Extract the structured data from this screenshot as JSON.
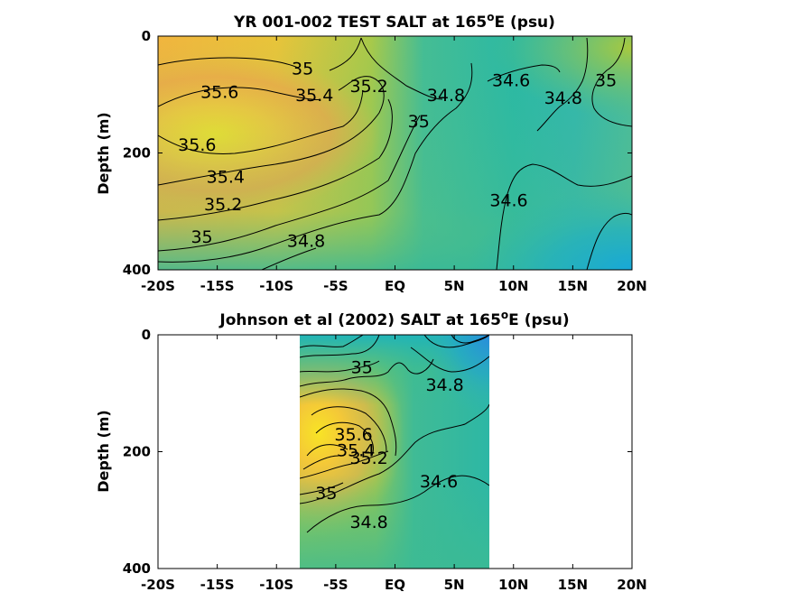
{
  "chart_data": [
    {
      "type": "contour",
      "title": "YR 001-002 TEST SALT at 165",
      "title_sup": "o",
      "title_tail": "E (psu)",
      "ylabel": "Depth (m)",
      "xlabel": "",
      "x_ticks": [
        "-20S",
        "-15S",
        "-10S",
        "-5S",
        "EQ",
        "5N",
        "10N",
        "15N",
        "20N"
      ],
      "x_tick_values": [
        -20,
        -15,
        -10,
        -5,
        0,
        5,
        10,
        15,
        20
      ],
      "y_ticks": [
        "0",
        "200",
        "400"
      ],
      "y_tick_values": [
        0,
        200,
        400
      ],
      "xlim": [
        -20,
        20
      ],
      "ylim": [
        0,
        400
      ],
      "data_extent_x": [
        -20,
        20
      ],
      "contour_levels": [
        34.6,
        34.8,
        35,
        35.2,
        35.4,
        35.6
      ],
      "contour_labels": [
        {
          "text": "35",
          "x": -7.8,
          "y": 55
        },
        {
          "text": "35.6",
          "x": -14.8,
          "y": 95
        },
        {
          "text": "35.4",
          "x": -6.8,
          "y": 100
        },
        {
          "text": "35.2",
          "x": -2.2,
          "y": 85
        },
        {
          "text": "34.8",
          "x": 4.3,
          "y": 100
        },
        {
          "text": "34.6",
          "x": 9.8,
          "y": 75
        },
        {
          "text": "34.8",
          "x": 14.2,
          "y": 105
        },
        {
          "text": "35",
          "x": 17.8,
          "y": 75
        },
        {
          "text": "35",
          "x": 2.0,
          "y": 145
        },
        {
          "text": "35.6",
          "x": -16.7,
          "y": 185
        },
        {
          "text": "35.4",
          "x": -14.3,
          "y": 240
        },
        {
          "text": "35.2",
          "x": -14.5,
          "y": 287
        },
        {
          "text": "35",
          "x": -16.3,
          "y": 343
        },
        {
          "text": "34.8",
          "x": -7.5,
          "y": 350
        },
        {
          "text": "34.6",
          "x": 9.6,
          "y": 280
        }
      ]
    },
    {
      "type": "contour",
      "title": "Johnson et al (2002) SALT at 165",
      "title_sup": "o",
      "title_tail": "E (psu)",
      "ylabel": "Depth (m)",
      "xlabel": "",
      "x_ticks": [
        "-20S",
        "-15S",
        "-10S",
        "-5S",
        "EQ",
        "5N",
        "10N",
        "15N",
        "20N"
      ],
      "x_tick_values": [
        -20,
        -15,
        -10,
        -5,
        0,
        5,
        10,
        15,
        20
      ],
      "y_ticks": [
        "0",
        "200",
        "400"
      ],
      "y_tick_values": [
        0,
        200,
        400
      ],
      "xlim": [
        -20,
        20
      ],
      "ylim": [
        0,
        400
      ],
      "data_extent_x": [
        -8,
        8
      ],
      "contour_levels": [
        34.6,
        34.8,
        35,
        35.2,
        35.4,
        35.6
      ],
      "contour_labels": [
        {
          "text": "35",
          "x": -2.8,
          "y": 55
        },
        {
          "text": "34.8",
          "x": 4.2,
          "y": 85
        },
        {
          "text": "35.6",
          "x": -3.5,
          "y": 170
        },
        {
          "text": "35.4",
          "x": -3.3,
          "y": 197
        },
        {
          "text": "35.2",
          "x": -2.2,
          "y": 210
        },
        {
          "text": "35",
          "x": -5.8,
          "y": 270
        },
        {
          "text": "34.6",
          "x": 3.7,
          "y": 250
        },
        {
          "text": "34.8",
          "x": -2.2,
          "y": 320
        }
      ]
    }
  ]
}
